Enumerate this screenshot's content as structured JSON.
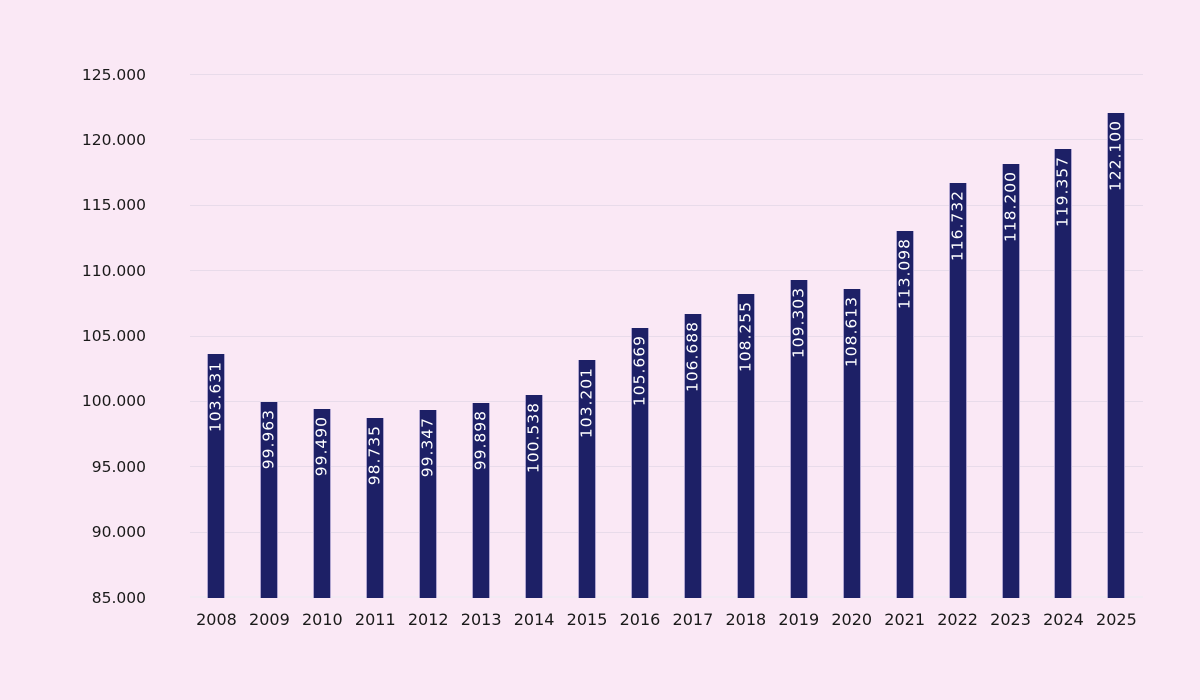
{
  "chart_data": {
    "type": "bar",
    "title": "",
    "xlabel": "",
    "ylabel": "",
    "categories": [
      "2008",
      "2009",
      "2010",
      "2011",
      "2012",
      "2013",
      "2014",
      "2015",
      "2016",
      "2017",
      "2018",
      "2019",
      "2020",
      "2021",
      "2022",
      "2023",
      "2024",
      "2025"
    ],
    "values": [
      103631,
      99963,
      99490,
      98735,
      99347,
      99898,
      100538,
      103201,
      105669,
      106688,
      108255,
      109303,
      108613,
      113098,
      116732,
      118200,
      119357,
      122100
    ],
    "value_labels": [
      "103.631",
      "99.963",
      "99.490",
      "98.735",
      "99.347",
      "99.898",
      "100.538",
      "103.201",
      "105.669",
      "106.688",
      "108.255",
      "109.303",
      "108.613",
      "113.098",
      "116.732",
      "118.200",
      "119.357",
      "122.100"
    ],
    "ylim": [
      85000,
      125000
    ],
    "ytick_step": 5000,
    "ytick_labels": [
      "85.000",
      "90.000",
      "95.000",
      "100.000",
      "105.000",
      "110.000",
      "115.000",
      "120.000",
      "125.000"
    ],
    "grid": true,
    "legend_position": "none",
    "thousands_separator": ".",
    "bar_label_rotation_deg": 90
  },
  "style": {
    "background_color": "#fae8f5",
    "bar_color": "#1d2066",
    "bar_label_color": "#ffffff",
    "gridline_color": "#e8dbea",
    "axis_text_color": "#1a1a1a"
  }
}
